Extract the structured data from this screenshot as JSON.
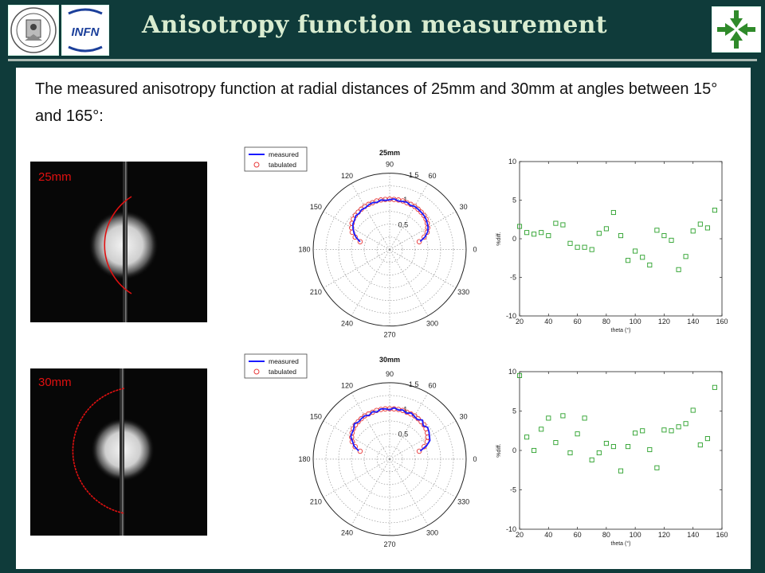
{
  "header": {
    "title": "Anisotropy function measurement",
    "logos": [
      "university-seal",
      "INFN",
      "arrows-emblem"
    ],
    "infn_text": "INFN"
  },
  "intro": "The measured anisotropy function at radial distances of 25mm and 30mm at angles between 15° and 165°:",
  "colors": {
    "background": "#0f3b3a",
    "title": "#d9ecd0",
    "measured": "#1a1aff",
    "tabulated": "#e83a3a",
    "diff": "#2aa02a",
    "arc": "#e01010"
  },
  "rows": [
    {
      "photo_label": "25mm"
    },
    {
      "photo_label": "30mm"
    }
  ],
  "chart_data": [
    {
      "type": "polar-line",
      "title": "25mm",
      "legend": [
        "measured",
        "tabulated"
      ],
      "legend_position": "outside-top-left",
      "r_ticks": [
        "0.5",
        "1",
        "1.5"
      ],
      "r_max": 1.5,
      "angle_ticks": [
        "0",
        "30",
        "60",
        "90",
        "120",
        "150",
        "180",
        "210",
        "240",
        "270",
        "300",
        "330"
      ],
      "series": [
        {
          "name": "measured",
          "theta": [
            15,
            20,
            25,
            30,
            35,
            40,
            45,
            50,
            55,
            60,
            65,
            70,
            75,
            80,
            85,
            90,
            95,
            100,
            105,
            110,
            115,
            120,
            125,
            130,
            135,
            140,
            145,
            150,
            155,
            160,
            165
          ],
          "r": [
            0.62,
            0.74,
            0.82,
            0.87,
            0.9,
            0.93,
            0.95,
            0.96,
            0.97,
            0.98,
            0.96,
            0.99,
            0.98,
            0.97,
            1.0,
            0.98,
            0.97,
            0.99,
            0.96,
            0.98,
            0.97,
            0.95,
            0.96,
            0.93,
            0.94,
            0.9,
            0.88,
            0.83,
            0.77,
            0.7,
            0.6
          ]
        },
        {
          "name": "tabulated",
          "theta": [
            15,
            20,
            25,
            30,
            35,
            40,
            45,
            50,
            55,
            60,
            65,
            70,
            75,
            80,
            85,
            90,
            95,
            100,
            105,
            110,
            115,
            120,
            125,
            130,
            135,
            140,
            145,
            150,
            155,
            160,
            165
          ],
          "r": [
            0.6,
            0.72,
            0.81,
            0.86,
            0.9,
            0.93,
            0.95,
            0.96,
            0.97,
            0.98,
            0.98,
            0.98,
            0.99,
            0.99,
            0.99,
            0.99,
            0.99,
            0.99,
            0.99,
            0.98,
            0.98,
            0.98,
            0.97,
            0.96,
            0.95,
            0.93,
            0.9,
            0.86,
            0.81,
            0.72,
            0.6
          ]
        }
      ]
    },
    {
      "type": "scatter",
      "xlabel": "theta (°)",
      "ylabel": "%diff.",
      "xlim": [
        20,
        160
      ],
      "ylim": [
        -10,
        10
      ],
      "x_ticks": [
        20,
        40,
        60,
        80,
        100,
        120,
        140,
        160
      ],
      "y_ticks": [
        -10,
        -5,
        0,
        5,
        10
      ],
      "series": [
        {
          "name": "",
          "x": [
            20,
            25,
            30,
            35,
            40,
            45,
            50,
            55,
            60,
            65,
            70,
            75,
            80,
            85,
            90,
            95,
            100,
            105,
            110,
            115,
            120,
            125,
            130,
            135,
            140,
            145,
            150,
            155
          ],
          "y": [
            1.6,
            0.8,
            0.6,
            0.8,
            0.4,
            2.0,
            1.8,
            -0.6,
            -1.1,
            -1.1,
            -1.4,
            0.7,
            1.3,
            3.4,
            0.4,
            -2.8,
            -1.6,
            -2.4,
            -3.4,
            1.1,
            0.4,
            -0.2,
            -4.0,
            -2.3,
            1.0,
            1.9,
            1.4,
            3.7
          ]
        }
      ]
    },
    {
      "type": "polar-line",
      "title": "30mm",
      "legend": [
        "measured",
        "tabulated"
      ],
      "legend_position": "outside-top-left",
      "r_ticks": [
        "0.5",
        "1",
        "1.5"
      ],
      "r_max": 1.5,
      "angle_ticks": [
        "0",
        "30",
        "60",
        "90",
        "120",
        "150",
        "180",
        "210",
        "240",
        "270",
        "300",
        "330"
      ],
      "series": [
        {
          "name": "measured",
          "theta": [
            15,
            20,
            25,
            30,
            35,
            40,
            45,
            50,
            55,
            60,
            65,
            70,
            75,
            80,
            85,
            90,
            95,
            100,
            105,
            110,
            115,
            120,
            125,
            130,
            135,
            140,
            145,
            150,
            155,
            160,
            165
          ],
          "r": [
            0.62,
            0.77,
            0.87,
            0.9,
            0.94,
            0.97,
            0.93,
            1.0,
            0.95,
            0.97,
            1.0,
            0.96,
            1.0,
            0.98,
            1.01,
            0.97,
            0.99,
            1.0,
            0.96,
            0.99,
            0.95,
            0.98,
            0.97,
            0.95,
            0.98,
            0.92,
            0.9,
            0.88,
            0.8,
            0.74,
            0.63
          ]
        },
        {
          "name": "tabulated",
          "theta": [
            15,
            20,
            25,
            30,
            35,
            40,
            45,
            50,
            55,
            60,
            65,
            70,
            75,
            80,
            85,
            90,
            95,
            100,
            105,
            110,
            115,
            120,
            125,
            130,
            135,
            140,
            145,
            150,
            155,
            160,
            165
          ],
          "r": [
            0.6,
            0.72,
            0.81,
            0.86,
            0.9,
            0.93,
            0.95,
            0.96,
            0.97,
            0.98,
            0.98,
            0.98,
            0.99,
            0.99,
            0.99,
            0.99,
            0.99,
            0.99,
            0.99,
            0.98,
            0.98,
            0.98,
            0.97,
            0.96,
            0.95,
            0.93,
            0.9,
            0.86,
            0.81,
            0.72,
            0.6
          ]
        }
      ]
    },
    {
      "type": "scatter",
      "xlabel": "theta (°)",
      "ylabel": "%diff.",
      "xlim": [
        20,
        160
      ],
      "ylim": [
        -10,
        10
      ],
      "x_ticks": [
        20,
        40,
        60,
        80,
        100,
        120,
        140,
        160
      ],
      "y_ticks": [
        -10,
        -5,
        0,
        5,
        10
      ],
      "series": [
        {
          "name": "",
          "x": [
            20,
            25,
            30,
            35,
            40,
            45,
            50,
            55,
            60,
            65,
            70,
            75,
            80,
            85,
            90,
            95,
            100,
            105,
            110,
            115,
            120,
            125,
            130,
            135,
            140,
            145,
            150,
            155
          ],
          "y": [
            9.5,
            1.7,
            0.0,
            2.7,
            4.1,
            1.0,
            4.4,
            -0.3,
            2.1,
            4.1,
            -1.2,
            -0.3,
            0.9,
            0.5,
            -2.6,
            0.5,
            2.2,
            2.5,
            0.1,
            -2.2,
            2.6,
            2.5,
            3.0,
            3.4,
            5.1,
            0.7,
            1.5,
            8.0
          ]
        }
      ]
    }
  ]
}
